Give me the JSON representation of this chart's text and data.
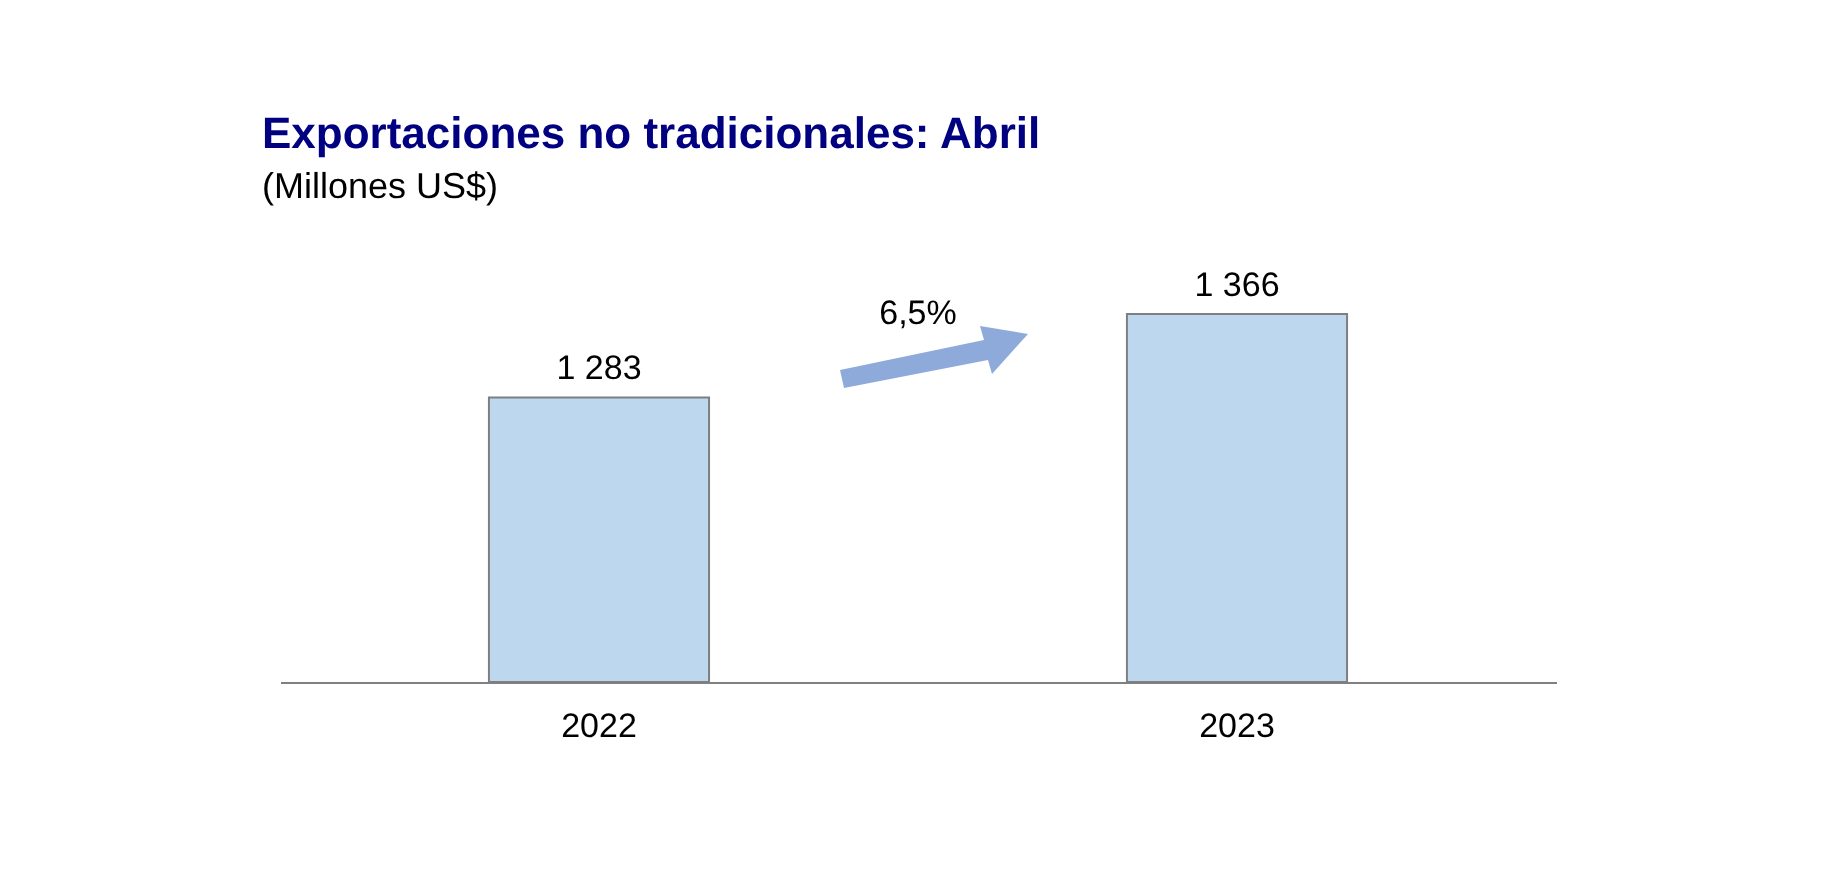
{
  "chart_data": {
    "type": "bar",
    "title": "Exportaciones no tradicionales: Abril",
    "subtitle": "(Millones US$)",
    "categories": [
      "2022",
      "2023"
    ],
    "values": [
      1283,
      1366
    ],
    "value_labels": [
      "1 283",
      "1 366"
    ],
    "color": "#bdd7ee",
    "ylim": [
      1000,
      1366
    ],
    "annotations": [
      "6,5%"
    ]
  }
}
